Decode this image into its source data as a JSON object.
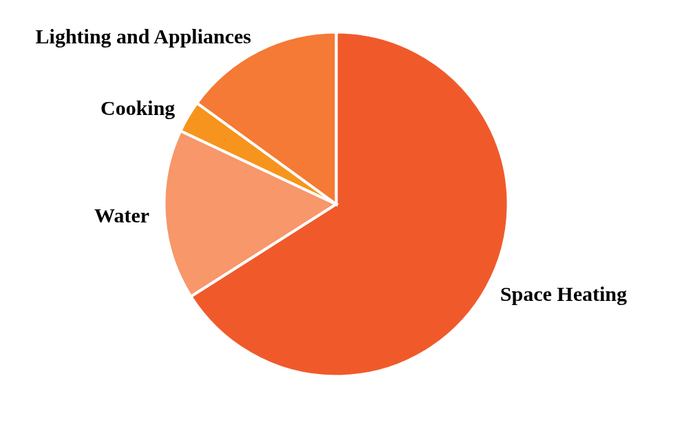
{
  "chart_data": {
    "type": "pie",
    "categories": [
      "Space Heating",
      "Water",
      "Cooking",
      "Lighting and Appliances"
    ],
    "values": [
      66,
      16,
      3,
      15
    ],
    "colors": [
      "#f05a2b",
      "#f7976a",
      "#f7941d",
      "#f47a35"
    ],
    "legend": false
  }
}
